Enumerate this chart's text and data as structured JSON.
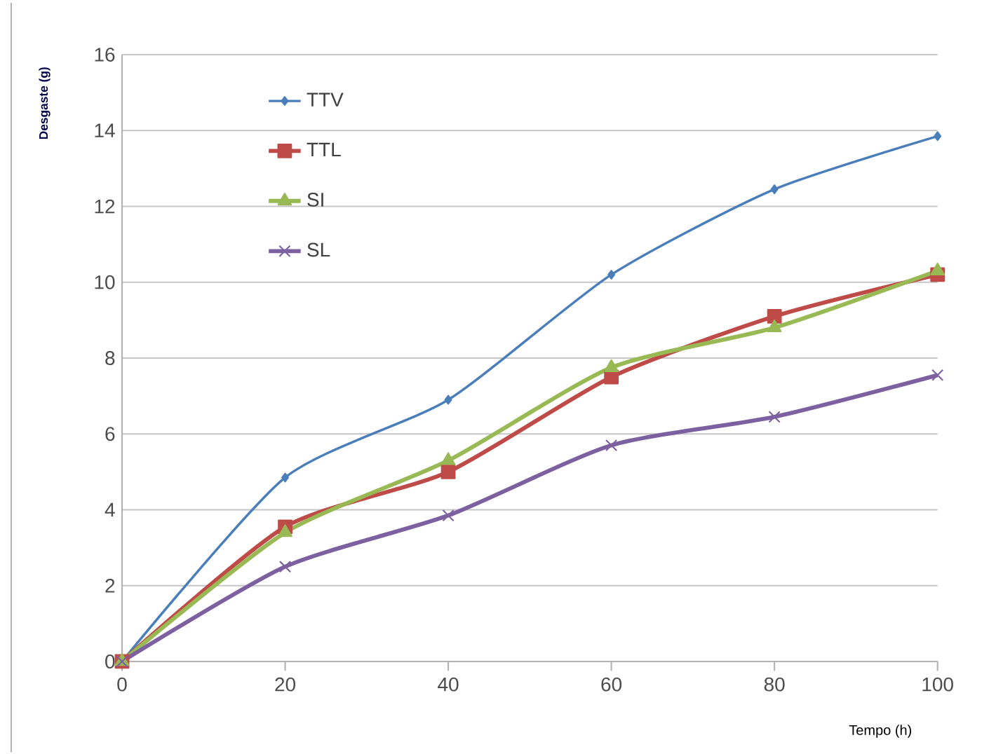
{
  "chart_data": {
    "type": "line",
    "xlabel": "Tempo (h)",
    "ylabel": "Desgaste (g)",
    "x": [
      0,
      20,
      40,
      60,
      80,
      100
    ],
    "series": [
      {
        "name": "TTV",
        "color": "#4a7ebb",
        "marker": "diamond",
        "values": [
          0,
          4.85,
          6.9,
          10.2,
          12.45,
          13.85
        ]
      },
      {
        "name": "TTL",
        "color": "#be4b48",
        "marker": "square",
        "values": [
          0,
          3.55,
          5.0,
          7.5,
          9.1,
          10.2
        ]
      },
      {
        "name": "SI",
        "color": "#98b954",
        "marker": "triangle",
        "values": [
          0,
          3.4,
          5.3,
          7.75,
          8.8,
          10.3
        ]
      },
      {
        "name": "SL",
        "color": "#7d60a0",
        "marker": "cross",
        "values": [
          0,
          2.5,
          3.85,
          5.7,
          6.45,
          7.55
        ]
      }
    ],
    "xlim": [
      0,
      100
    ],
    "xticks": [
      0,
      20,
      40,
      60,
      80,
      100
    ],
    "ylim": [
      0,
      16
    ],
    "yticks": [
      0,
      2,
      4,
      6,
      8,
      10,
      12,
      14,
      16
    ],
    "grid": "y",
    "legend": "top left",
    "line_style": "solid"
  }
}
